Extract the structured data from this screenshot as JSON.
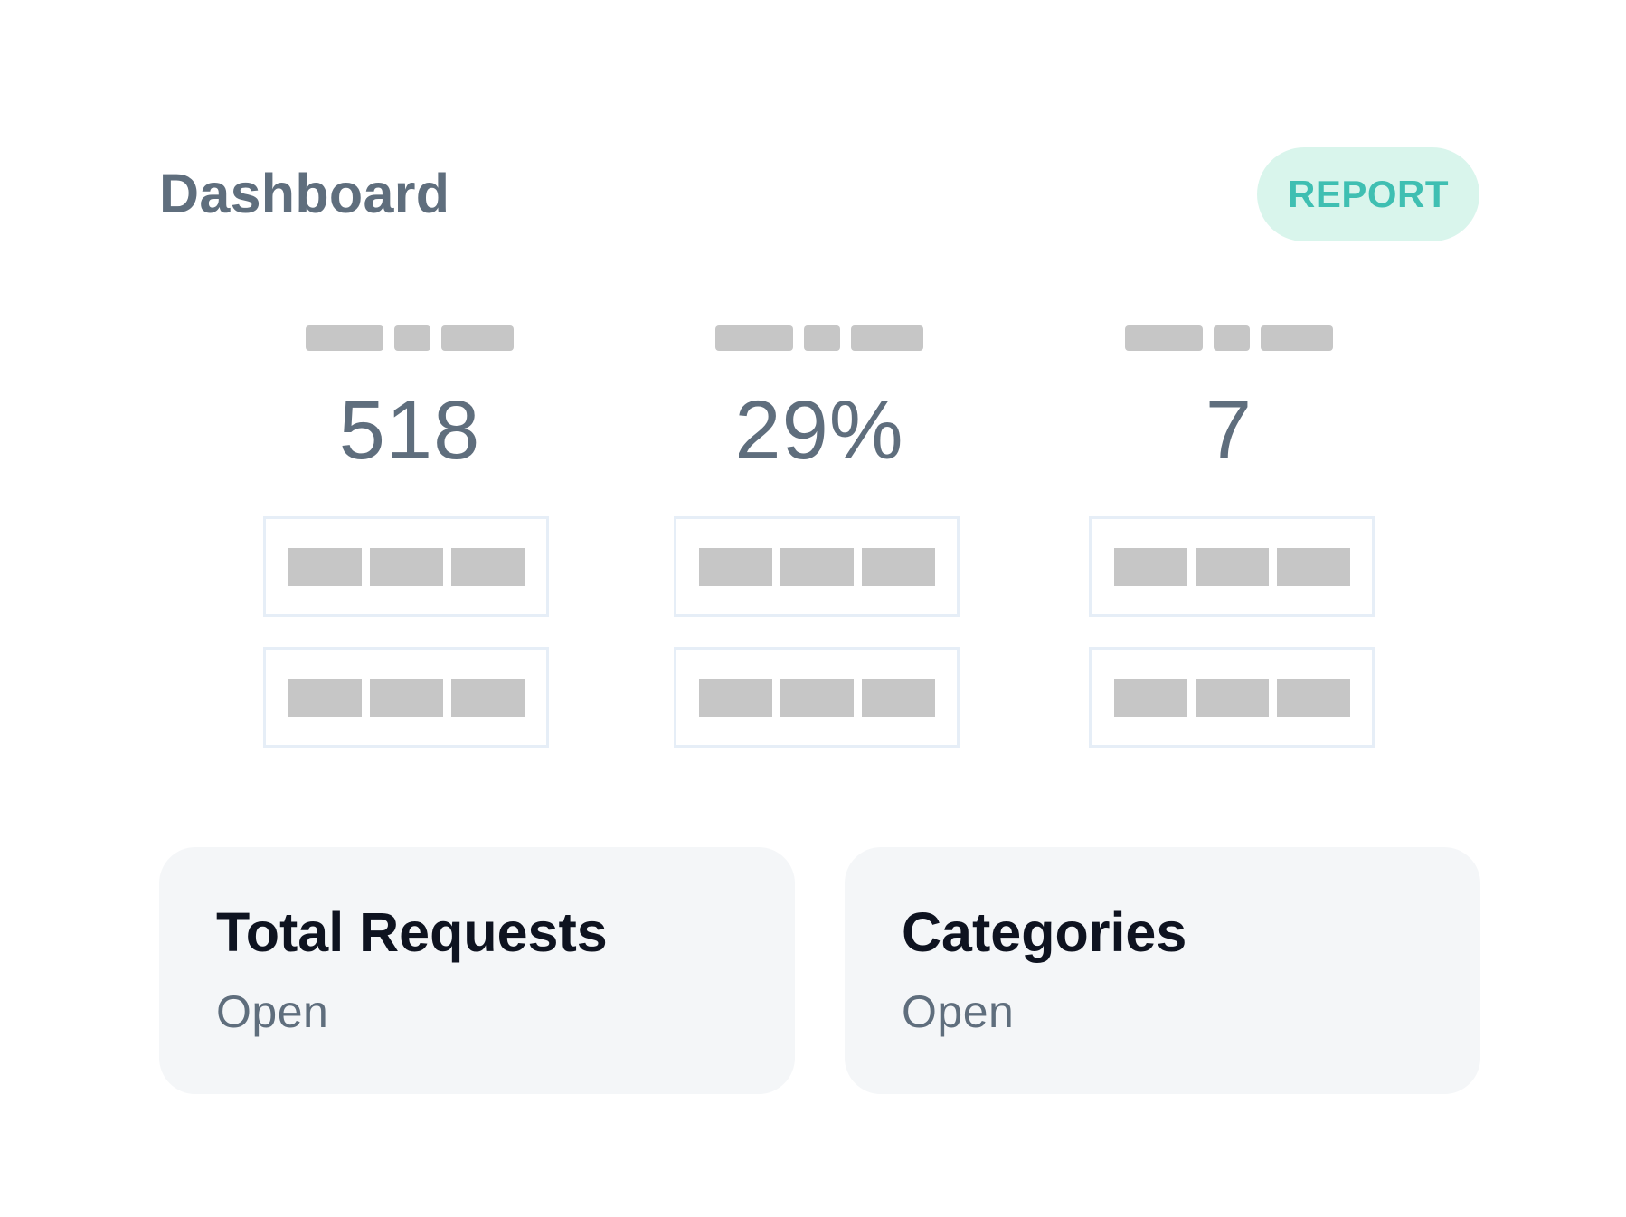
{
  "header": {
    "title": "Dashboard",
    "report_label": "REPORT"
  },
  "stats": [
    {
      "value": "518"
    },
    {
      "value": "29%"
    },
    {
      "value": "7"
    }
  ],
  "cards": [
    {
      "title": "Total Requests",
      "subtitle": "Open"
    },
    {
      "title": "Categories",
      "subtitle": "Open"
    }
  ],
  "colors": {
    "accent": "#3fbfb2",
    "accent_bg": "#d9f5ec",
    "text_muted": "#5f6e7d",
    "card_bg": "#f4f6f8",
    "placeholder": "#c6c6c6"
  }
}
